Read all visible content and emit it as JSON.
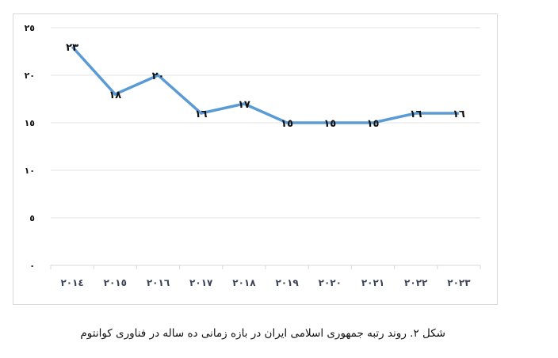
{
  "chart_data": {
    "type": "line",
    "title": "",
    "xlabel": "",
    "ylabel": "",
    "categories": [
      "۲۰۱٤",
      "۲۰۱٥",
      "۲۰۱٦",
      "۲۰۱۷",
      "۲۰۱۸",
      "۲۰۱۹",
      "۲۰۲۰",
      "۲۰۲۱",
      "۲۰۲۲",
      "۲۰۲۳"
    ],
    "x": [
      2014,
      2015,
      2016,
      2017,
      2018,
      2019,
      2020,
      2021,
      2022,
      2023
    ],
    "series": [
      {
        "name": "Rank",
        "values": [
          23,
          18,
          20,
          16,
          17,
          15,
          15,
          15,
          16,
          16
        ],
        "color": "#5b9bd5",
        "data_labels": [
          "۲۳",
          "۱۸",
          "۲۰",
          "۱٦",
          "۱۷",
          "۱٥",
          "۱٥",
          "۱٥",
          "۱٦",
          "۱٦"
        ]
      }
    ],
    "ylim": [
      0,
      25
    ],
    "yticks": [
      0,
      5,
      10,
      15,
      20,
      25
    ],
    "ytick_labels": [
      "۰",
      "٥",
      "۱۰",
      "۱٥",
      "۲۰",
      "۲٥"
    ],
    "grid": true,
    "legend": "none"
  },
  "caption": "شکل ۲. روند رتبه جمهوری اسلامی ایران در بازه زمانی ده ساله در فناوری کوانتوم",
  "colors": {
    "line": "#5b9bd5",
    "grid": "#e3e3e3",
    "axis_text": "#3a4256",
    "label_text": "#111111"
  }
}
